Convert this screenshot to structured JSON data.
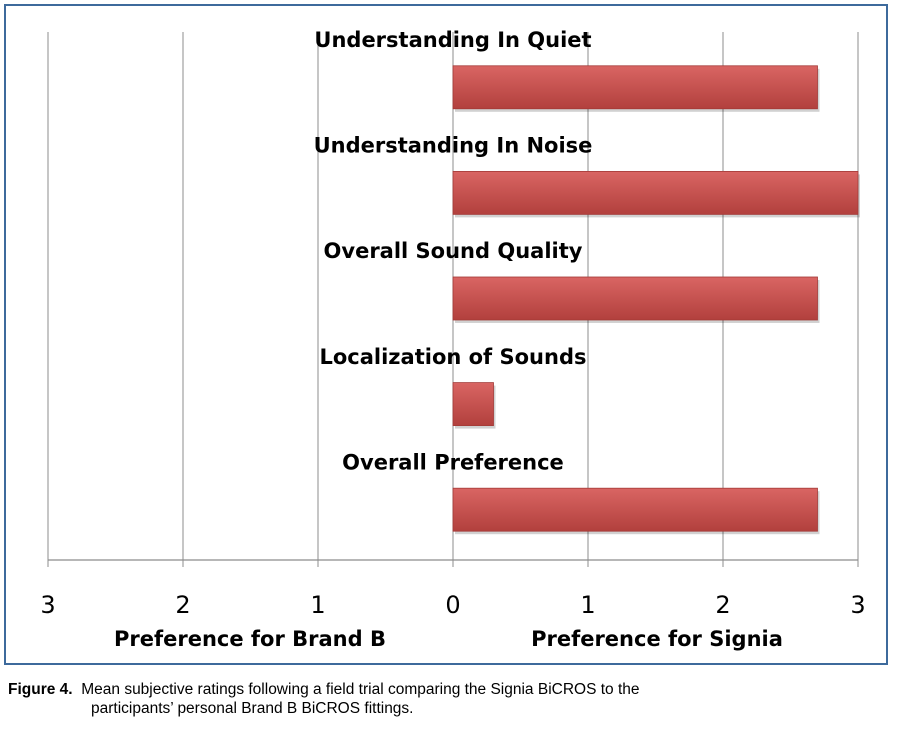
{
  "chart_data": {
    "type": "bar",
    "orientation": "horizontal",
    "categories": [
      "Understanding In Quiet",
      "Understanding In Noise",
      "Overall Sound Quality",
      "Localization of Sounds",
      "Overall Preference"
    ],
    "values": [
      2.7,
      3.0,
      2.7,
      0.3,
      2.7
    ],
    "xlim": [
      -3,
      3
    ],
    "xticks": [
      -3,
      -2,
      -1,
      0,
      1,
      2,
      3
    ],
    "xtick_labels": [
      "3",
      "2",
      "1",
      "0",
      "1",
      "2",
      "3"
    ],
    "xlabel_left": "Preference for Brand B",
    "xlabel_right": "Preference for Signia",
    "grid": true,
    "legend": "none",
    "bar_color": "#c0504d"
  },
  "caption": {
    "label": "Figure 4.",
    "line1": "Mean subjective ratings following a field trial comparing the Signia BiCROS to the",
    "line2": "participants’ personal Brand B BiCROS fittings."
  }
}
